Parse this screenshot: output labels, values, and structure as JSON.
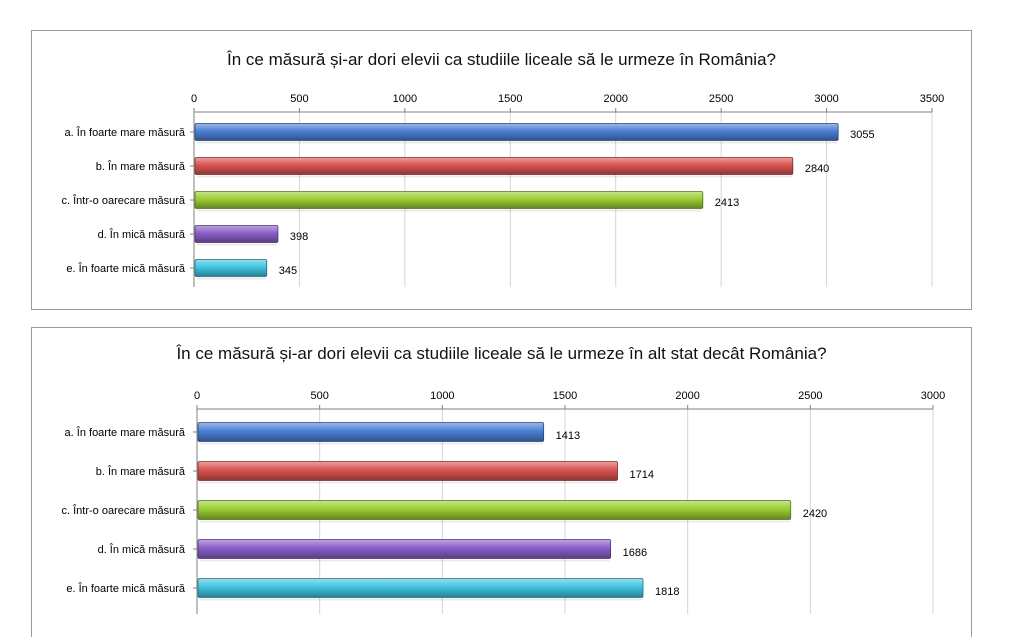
{
  "chart_data": [
    {
      "type": "bar",
      "orientation": "horizontal",
      "title": "În ce măsură și-ar dori elevii ca studiile liceale să le urmeze în România?",
      "categories": [
        "a. În foarte mare măsură",
        "b. În mare măsură",
        "c. Într-o oarecare măsură",
        "d. În mică măsură",
        "e. În foarte mică măsură"
      ],
      "values": [
        3055,
        2840,
        2413,
        398,
        345
      ],
      "xlim": [
        0,
        3500
      ],
      "ticks": [
        0,
        500,
        1000,
        1500,
        2000,
        2500,
        3000,
        3500
      ],
      "tick_labels": [
        "0",
        "500",
        "1000",
        "1500",
        "2000",
        "2500",
        "3000",
        "3500"
      ],
      "axis_position": "top",
      "grid": true,
      "colors": [
        "#4a7fd4",
        "#d9534f",
        "#9acd32",
        "#8a5ec8",
        "#3fc4e0"
      ]
    },
    {
      "type": "bar",
      "orientation": "horizontal",
      "title": "În ce măsură și-ar dori elevii ca studiile liceale să le urmeze în alt stat decât România?",
      "categories": [
        "a. În foarte mare măsură",
        "b. În mare măsură",
        "c. Într-o oarecare măsură",
        "d. În mică măsură",
        "e. În foarte mică măsură"
      ],
      "values": [
        1413,
        1714,
        2420,
        1686,
        1818
      ],
      "xlim": [
        0,
        3000
      ],
      "ticks": [
        0,
        500,
        1000,
        1500,
        2000,
        2500,
        3000
      ],
      "tick_labels": [
        "0",
        "500",
        "1000",
        "1500",
        "2000",
        "2500",
        "3000"
      ],
      "axis_position": "top",
      "grid": true,
      "colors": [
        "#4a7fd4",
        "#d9534f",
        "#9acd32",
        "#8a5ec8",
        "#3fc4e0"
      ]
    }
  ]
}
